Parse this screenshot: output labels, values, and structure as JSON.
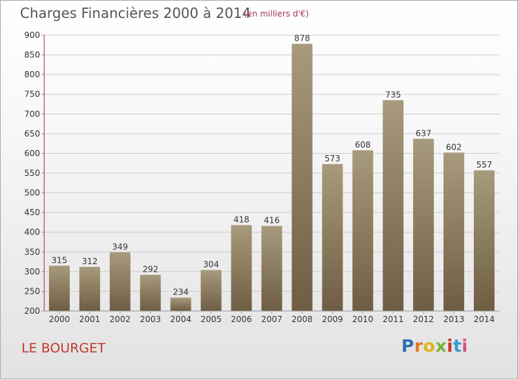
{
  "header": {
    "title": "Charges Financières 2000 à 2014",
    "subtitle": "(en milliers d'€)"
  },
  "footer": {
    "commune": "LE BOURGET",
    "logo": "Proxiti"
  },
  "colors": {
    "bar_light": "#a89a7c",
    "bar_dark": "#6e5d43",
    "grid": "#cccccc",
    "axis": "#b11d56",
    "commune_text": "#c0392b"
  },
  "chart_data": {
    "type": "bar",
    "categories": [
      "2000",
      "2001",
      "2002",
      "2003",
      "2004",
      "2005",
      "2006",
      "2007",
      "2008",
      "2009",
      "2010",
      "2011",
      "2012",
      "2013",
      "2014"
    ],
    "values": [
      315,
      312,
      349,
      292,
      234,
      304,
      418,
      416,
      878,
      573,
      608,
      735,
      637,
      602,
      557
    ],
    "ylim": [
      200,
      900
    ],
    "yticks": [
      200,
      250,
      300,
      350,
      400,
      450,
      500,
      550,
      600,
      650,
      700,
      750,
      800,
      850,
      900
    ],
    "grid": true,
    "data_labels": true,
    "legend": "none"
  }
}
